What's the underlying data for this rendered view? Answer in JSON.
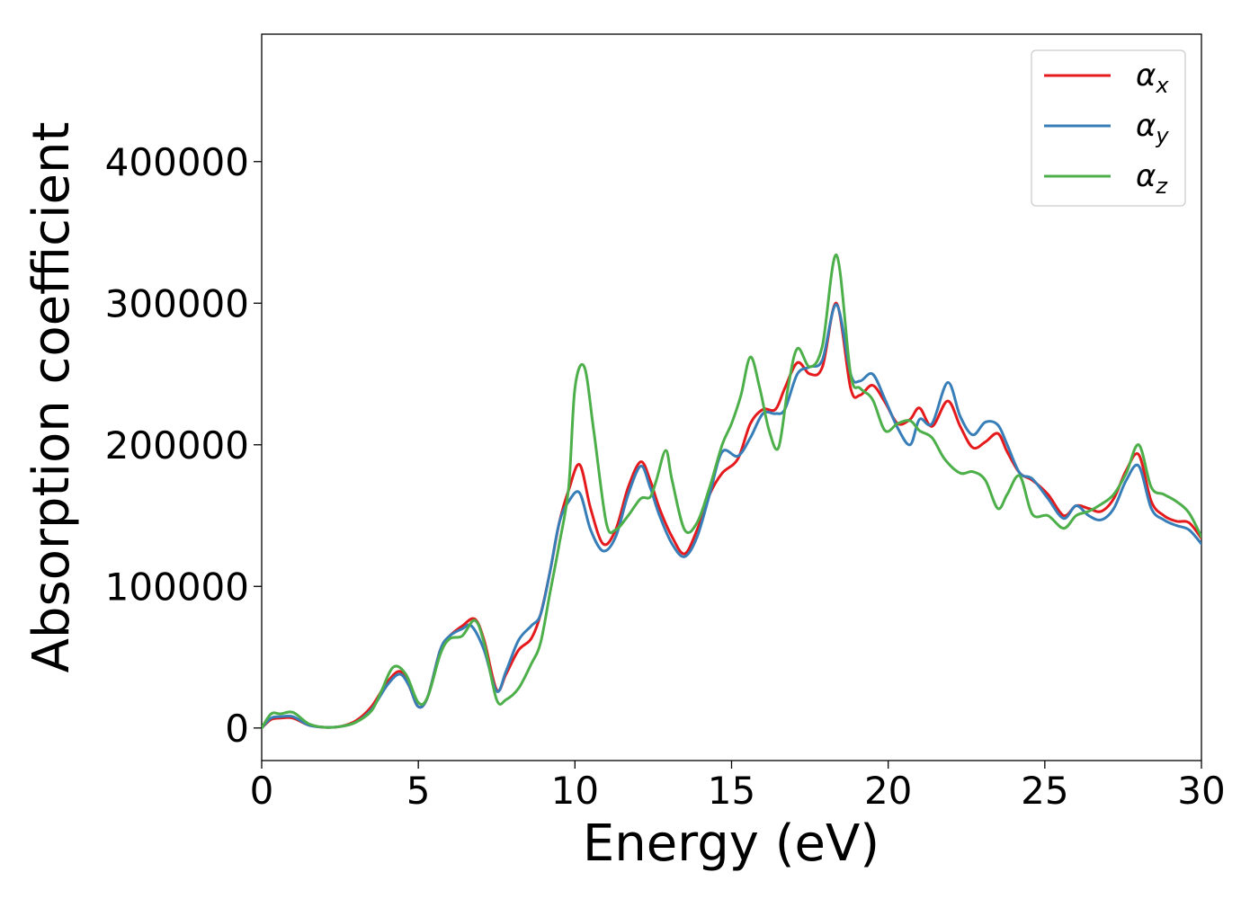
{
  "chart_data": {
    "type": "line",
    "title": "",
    "xlabel": "Energy (eV)",
    "ylabel": "Absorption coefficient",
    "xlim": [
      0,
      30
    ],
    "ylim": [
      -23000,
      490000
    ],
    "xticks": [
      0,
      5,
      10,
      15,
      20,
      25,
      30
    ],
    "yticks": [
      0,
      100000,
      200000,
      300000,
      400000
    ],
    "grid": false,
    "legend_position": "top-right",
    "series": [
      {
        "name": "α",
        "subscript": "x",
        "color": "#e41a1c",
        "x": [
          0,
          0.3,
          0.6,
          1.0,
          1.5,
          2.0,
          2.5,
          3.0,
          3.5,
          4.0,
          4.4,
          4.7,
          5.0,
          5.3,
          5.7,
          6.0,
          6.4,
          6.8,
          7.1,
          7.5,
          7.8,
          8.2,
          8.6,
          8.9,
          9.2,
          9.5,
          9.8,
          10.15,
          10.5,
          10.9,
          11.3,
          11.7,
          12.1,
          12.4,
          12.7,
          13.1,
          13.5,
          13.9,
          14.3,
          14.7,
          15.2,
          15.6,
          16.0,
          16.4,
          16.7,
          17.1,
          17.5,
          17.9,
          18.35,
          18.8,
          19.1,
          19.5,
          19.9,
          20.3,
          20.7,
          21.0,
          21.4,
          21.9,
          22.3,
          22.7,
          23.1,
          23.5,
          23.8,
          24.2,
          24.6,
          25.1,
          25.6,
          26.0,
          26.4,
          26.8,
          27.2,
          27.6,
          28.0,
          28.4,
          28.8,
          29.2,
          29.6,
          30.0
        ],
        "values": [
          0,
          6000,
          7000,
          7000,
          2000,
          500,
          1000,
          5000,
          15000,
          32000,
          40000,
          30000,
          15000,
          22000,
          55000,
          65000,
          72000,
          77000,
          62000,
          27000,
          38000,
          55000,
          63000,
          80000,
          110000,
          145000,
          168000,
          186000,
          155000,
          130000,
          140000,
          170000,
          188000,
          175000,
          155000,
          135000,
          123000,
          140000,
          165000,
          180000,
          190000,
          215000,
          225000,
          225000,
          240000,
          258000,
          250000,
          255000,
          300000,
          240000,
          235000,
          242000,
          230000,
          215000,
          218000,
          226000,
          213000,
          231000,
          213000,
          198000,
          202000,
          208000,
          195000,
          180000,
          175000,
          165000,
          150000,
          157000,
          155000,
          153000,
          162000,
          182000,
          193000,
          160000,
          150000,
          146000,
          145000,
          134000
        ]
      },
      {
        "name": "α",
        "subscript": "y",
        "color": "#377eb8",
        "x": [
          0,
          0.3,
          0.6,
          1.0,
          1.5,
          2.0,
          2.5,
          3.0,
          3.5,
          4.0,
          4.4,
          4.7,
          5.0,
          5.3,
          5.7,
          6.0,
          6.4,
          6.7,
          7.1,
          7.5,
          7.8,
          8.2,
          8.6,
          8.9,
          9.2,
          9.5,
          9.8,
          10.15,
          10.5,
          10.9,
          11.3,
          11.7,
          12.1,
          12.4,
          12.7,
          13.1,
          13.5,
          13.9,
          14.3,
          14.7,
          15.2,
          15.6,
          16.0,
          16.4,
          16.7,
          17.1,
          17.5,
          17.9,
          18.35,
          18.8,
          19.1,
          19.5,
          19.9,
          20.3,
          20.7,
          21.0,
          21.4,
          21.9,
          22.3,
          22.7,
          23.1,
          23.5,
          23.8,
          24.2,
          24.6,
          25.1,
          25.6,
          26.0,
          26.4,
          26.8,
          27.2,
          27.6,
          28.0,
          28.4,
          28.8,
          29.2,
          29.6,
          30.0
        ],
        "values": [
          0,
          7000,
          8000,
          8000,
          2000,
          500,
          1000,
          4000,
          13000,
          30000,
          38000,
          30000,
          15000,
          22000,
          55000,
          65000,
          70000,
          72000,
          55000,
          26000,
          40000,
          62000,
          72000,
          80000,
          110000,
          145000,
          160000,
          166000,
          140000,
          125000,
          135000,
          165000,
          185000,
          170000,
          150000,
          130000,
          121000,
          135000,
          165000,
          195000,
          192000,
          205000,
          222000,
          222000,
          225000,
          250000,
          255000,
          260000,
          299000,
          250000,
          245000,
          250000,
          232000,
          212000,
          200000,
          218000,
          215000,
          244000,
          220000,
          207000,
          216000,
          214000,
          200000,
          180000,
          176000,
          162000,
          148000,
          157000,
          150000,
          147000,
          155000,
          175000,
          185000,
          155000,
          147000,
          143000,
          140000,
          130000
        ]
      },
      {
        "name": "α",
        "subscript": "z",
        "color": "#4daf4a",
        "x": [
          0,
          0.3,
          0.6,
          1.0,
          1.5,
          2.0,
          2.5,
          3.0,
          3.5,
          3.8,
          4.2,
          4.6,
          5.0,
          5.3,
          5.7,
          6.0,
          6.4,
          6.8,
          7.1,
          7.5,
          7.8,
          8.2,
          8.6,
          8.9,
          9.2,
          9.5,
          9.8,
          10.0,
          10.3,
          10.6,
          11.0,
          11.3,
          11.7,
          12.1,
          12.4,
          12.6,
          12.9,
          13.1,
          13.5,
          13.9,
          14.3,
          14.7,
          15.0,
          15.3,
          15.6,
          15.9,
          16.2,
          16.5,
          16.8,
          17.1,
          17.5,
          17.9,
          18.35,
          18.8,
          19.1,
          19.5,
          19.9,
          20.3,
          20.7,
          21.0,
          21.4,
          21.8,
          22.3,
          22.7,
          23.1,
          23.5,
          23.8,
          24.2,
          24.6,
          25.1,
          25.6,
          26.0,
          26.4,
          26.8,
          27.2,
          27.6,
          28.0,
          28.4,
          28.8,
          29.2,
          29.6,
          30.0
        ],
        "values": [
          0,
          10000,
          10000,
          11000,
          3000,
          500,
          1000,
          4000,
          12000,
          25000,
          43000,
          38000,
          18000,
          22000,
          52000,
          63000,
          65000,
          76000,
          60000,
          20000,
          20000,
          28000,
          45000,
          60000,
          95000,
          130000,
          170000,
          240000,
          255000,
          210000,
          145000,
          140000,
          150000,
          162000,
          163000,
          175000,
          196000,
          175000,
          140000,
          145000,
          170000,
          200000,
          215000,
          235000,
          262000,
          240000,
          210000,
          198000,
          240000,
          268000,
          255000,
          270000,
          334000,
          250000,
          240000,
          232000,
          210000,
          215000,
          217000,
          210000,
          205000,
          190000,
          180000,
          181000,
          175000,
          155000,
          165000,
          178000,
          151000,
          150000,
          141000,
          150000,
          153000,
          158000,
          165000,
          180000,
          200000,
          170000,
          165000,
          160000,
          152000,
          135000
        ]
      }
    ]
  }
}
